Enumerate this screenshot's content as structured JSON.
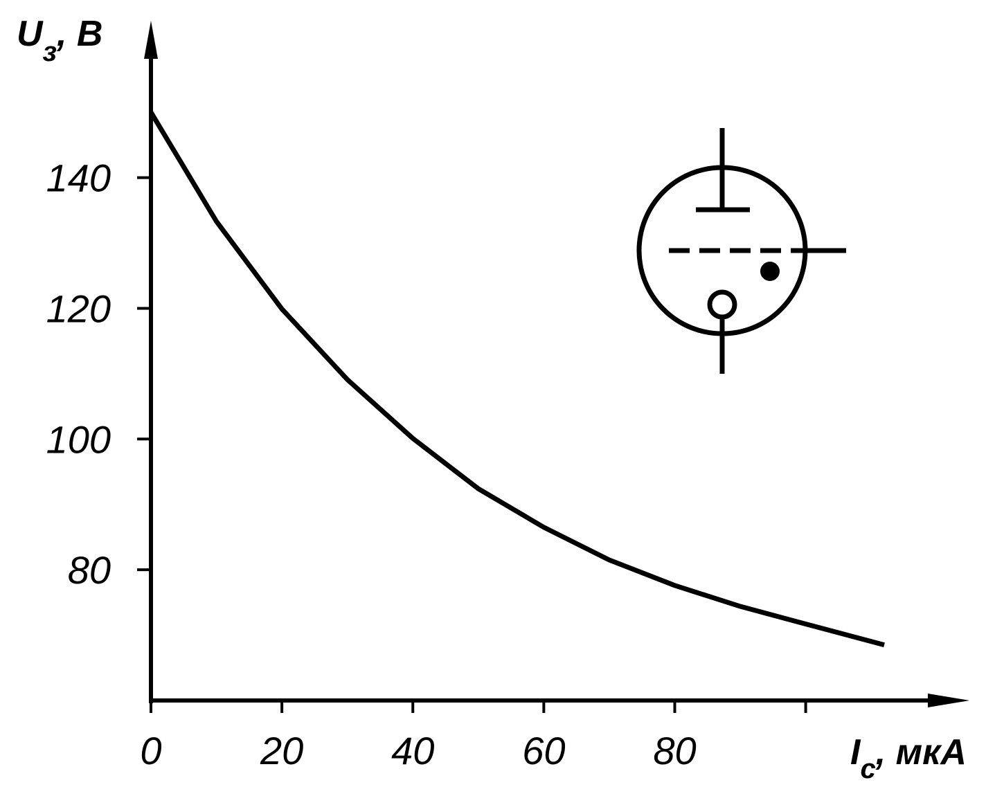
{
  "chart_data": {
    "type": "line",
    "xlabel": {
      "main": "I",
      "sub": "с",
      "unit": ", мкА"
    },
    "ylabel": {
      "main": "U",
      "sub": "з",
      "unit": ", В"
    },
    "series": [
      {
        "color": "#000000",
        "x": [
          0,
          10,
          20,
          30,
          40,
          50,
          60,
          70,
          80,
          90,
          100,
          112
        ],
        "values": [
          150,
          133.3,
          119.9,
          109.1,
          100.1,
          92.4,
          86.5,
          81.5,
          77.6,
          74.4,
          71.7,
          68.5
        ]
      }
    ],
    "xlim": [
      0,
      125
    ],
    "ylim": [
      60,
      164
    ],
    "xticks": [
      0,
      20,
      40,
      60,
      80,
      {
        "value": 100,
        "label": null
      }
    ],
    "yticks": [
      80,
      100,
      120,
      140
    ]
  }
}
